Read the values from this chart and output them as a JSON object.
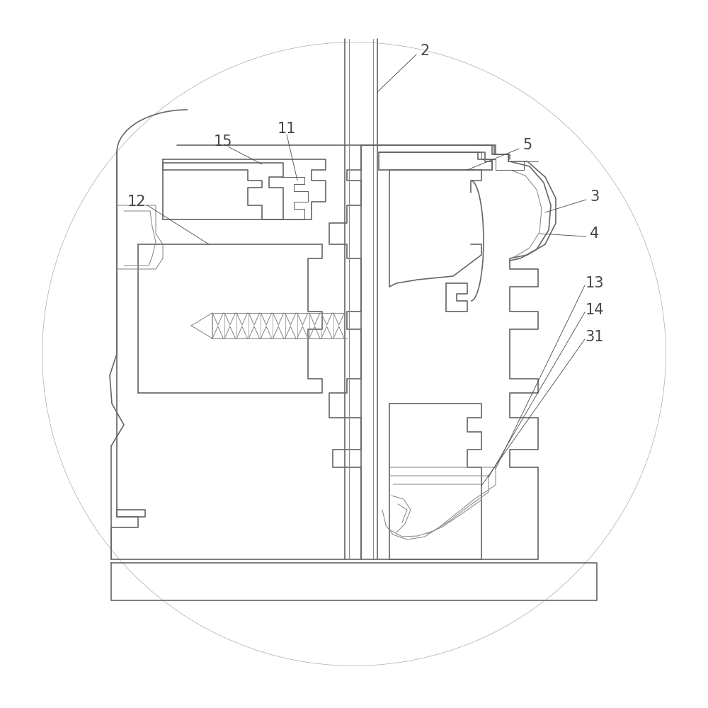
{
  "bg": "white",
  "circle_fill": "#f0f0f0",
  "circle_edge": "#aaaaaa",
  "lc": "#666666",
  "tlc": "#888888",
  "lbl": "#444444",
  "lw": 1.2,
  "lwt": 0.75,
  "lwl": 0.6,
  "fs": 15,
  "figsize": [
    10,
    10
  ],
  "dpi": 100
}
